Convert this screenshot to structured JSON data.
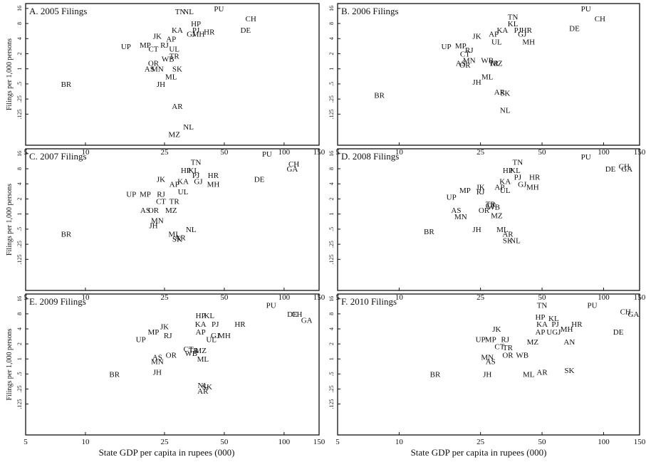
{
  "x_axis_label": "State GDP per capita in rupees (000)",
  "y_axis_label": "Filings per 1,000 persons",
  "chart_data": [
    {
      "type": "scatter",
      "title": "A. 2005 Filings",
      "xscale": "log",
      "yscale": "log",
      "xlim": [
        5,
        150
      ],
      "ylim": [
        0.03,
        20
      ],
      "xticks": [
        5,
        10,
        25,
        50,
        100,
        150
      ],
      "yticks": [
        16,
        8,
        4,
        2,
        1,
        0.5,
        0.25,
        0.125
      ],
      "ytick_labels": [
        "16",
        "8",
        "4",
        "2",
        "1",
        ".5",
        ".25",
        ".125"
      ],
      "points": [
        {
          "label": "TN",
          "x": 30,
          "y": 14
        },
        {
          "label": "NL",
          "x": 33,
          "y": 14
        },
        {
          "label": "PU",
          "x": 47,
          "y": 16
        },
        {
          "label": "CH",
          "x": 68,
          "y": 10
        },
        {
          "label": "HP",
          "x": 36,
          "y": 8
        },
        {
          "label": "PJ",
          "x": 36,
          "y": 6
        },
        {
          "label": "KA",
          "x": 29,
          "y": 6
        },
        {
          "label": "GJ",
          "x": 34,
          "y": 5
        },
        {
          "label": "MH",
          "x": 37,
          "y": 5
        },
        {
          "label": "HR",
          "x": 42,
          "y": 5.5
        },
        {
          "label": "DE",
          "x": 64,
          "y": 6
        },
        {
          "label": "JK",
          "x": 23,
          "y": 4.5
        },
        {
          "label": "AP",
          "x": 27,
          "y": 4
        },
        {
          "label": "UP",
          "x": 16,
          "y": 2.8
        },
        {
          "label": "MP",
          "x": 20,
          "y": 3
        },
        {
          "label": "RJ",
          "x": 25,
          "y": 3
        },
        {
          "label": "CT",
          "x": 22,
          "y": 2.5
        },
        {
          "label": "UL",
          "x": 28,
          "y": 2.5
        },
        {
          "label": "TR",
          "x": 28,
          "y": 1.8
        },
        {
          "label": "WB",
          "x": 26,
          "y": 1.6
        },
        {
          "label": "OR",
          "x": 22,
          "y": 1.3
        },
        {
          "label": "AS",
          "x": 21,
          "y": 1
        },
        {
          "label": "MN",
          "x": 23,
          "y": 1
        },
        {
          "label": "SK",
          "x": 29,
          "y": 1
        },
        {
          "label": "ML",
          "x": 27,
          "y": 0.7
        },
        {
          "label": "BR",
          "x": 8,
          "y": 0.5
        },
        {
          "label": "JH",
          "x": 24,
          "y": 0.5
        },
        {
          "label": "AR",
          "x": 29,
          "y": 0.18
        },
        {
          "label": "NL",
          "x": 33,
          "y": 0.07
        },
        {
          "label": "MZ",
          "x": 28,
          "y": 0.05
        }
      ]
    },
    {
      "type": "scatter",
      "title": "B. 2006 Filings",
      "xscale": "log",
      "yscale": "log",
      "xlim": [
        5,
        150
      ],
      "ylim": [
        0.03,
        20
      ],
      "xticks": [
        5,
        10,
        25,
        50,
        100,
        150
      ],
      "yticks": [
        16,
        8,
        4,
        2,
        1,
        0.5,
        0.25,
        0.125
      ],
      "ytick_labels": [
        "16",
        "8",
        "4",
        "2",
        "1",
        ".5",
        ".25",
        ".125"
      ],
      "points": [
        {
          "label": "TN",
          "x": 36,
          "y": 11
        },
        {
          "label": "PU",
          "x": 82,
          "y": 16
        },
        {
          "label": "CH",
          "x": 96,
          "y": 10
        },
        {
          "label": "KL",
          "x": 36,
          "y": 8
        },
        {
          "label": "PJ",
          "x": 38,
          "y": 6
        },
        {
          "label": "KA",
          "x": 32,
          "y": 6
        },
        {
          "label": "AP",
          "x": 29,
          "y": 5
        },
        {
          "label": "HR",
          "x": 42,
          "y": 6
        },
        {
          "label": "GJ",
          "x": 40,
          "y": 5
        },
        {
          "label": "DE",
          "x": 72,
          "y": 6.5
        },
        {
          "label": "JK",
          "x": 24,
          "y": 4.5
        },
        {
          "label": "UL",
          "x": 30,
          "y": 3.5
        },
        {
          "label": "MH",
          "x": 43,
          "y": 3.5
        },
        {
          "label": "UP",
          "x": 17,
          "y": 2.8
        },
        {
          "label": "MP",
          "x": 20,
          "y": 2.9
        },
        {
          "label": "RJ",
          "x": 22,
          "y": 2.4
        },
        {
          "label": "CT",
          "x": 21,
          "y": 2
        },
        {
          "label": "MN",
          "x": 22,
          "y": 1.5
        },
        {
          "label": "OR",
          "x": 21,
          "y": 1.2
        },
        {
          "label": "AS",
          "x": 20,
          "y": 1.3
        },
        {
          "label": "WB",
          "x": 27,
          "y": 1.5
        },
        {
          "label": "MZ",
          "x": 30,
          "y": 1.3
        },
        {
          "label": "TR",
          "x": 29,
          "y": 1.3
        },
        {
          "label": "ML",
          "x": 27,
          "y": 0.7
        },
        {
          "label": "JH",
          "x": 24,
          "y": 0.55
        },
        {
          "label": "AR",
          "x": 31,
          "y": 0.35
        },
        {
          "label": "SK",
          "x": 33,
          "y": 0.33
        },
        {
          "label": "NL",
          "x": 33,
          "y": 0.15
        },
        {
          "label": "BR",
          "x": 8,
          "y": 0.3
        }
      ]
    },
    {
      "type": "scatter",
      "title": "C. 2007 Filings",
      "xscale": "log",
      "yscale": "log",
      "xlim": [
        5,
        150
      ],
      "ylim": [
        0.03,
        20
      ],
      "xticks": [
        5,
        10,
        25,
        50,
        100,
        150
      ],
      "yticks": [
        16,
        8,
        4,
        2,
        1,
        0.5,
        0.25,
        0.125
      ],
      "ytick_labels": [
        "16",
        "8",
        "4",
        "2",
        "1",
        ".5",
        ".25",
        ".125"
      ],
      "points": [
        {
          "label": "PU",
          "x": 82,
          "y": 16
        },
        {
          "label": "TN",
          "x": 36,
          "y": 11
        },
        {
          "label": "CH",
          "x": 112,
          "y": 10
        },
        {
          "label": "GA",
          "x": 110,
          "y": 8
        },
        {
          "label": "HP",
          "x": 32,
          "y": 7.5
        },
        {
          "label": "KL",
          "x": 35,
          "y": 7.5
        },
        {
          "label": "PJ",
          "x": 36,
          "y": 6
        },
        {
          "label": "HR",
          "x": 44,
          "y": 6
        },
        {
          "label": "DE",
          "x": 75,
          "y": 5
        },
        {
          "label": "GJ",
          "x": 37,
          "y": 4.5
        },
        {
          "label": "KA",
          "x": 31,
          "y": 4.5
        },
        {
          "label": "MH",
          "x": 44,
          "y": 4
        },
        {
          "label": "JK",
          "x": 24,
          "y": 5
        },
        {
          "label": "AP",
          "x": 28,
          "y": 4
        },
        {
          "label": "UL",
          "x": 31,
          "y": 2.8
        },
        {
          "label": "UP",
          "x": 17,
          "y": 2.5
        },
        {
          "label": "MP",
          "x": 20,
          "y": 2.5
        },
        {
          "label": "RJ",
          "x": 24,
          "y": 2.5
        },
        {
          "label": "CT",
          "x": 24,
          "y": 1.8
        },
        {
          "label": "TR",
          "x": 28,
          "y": 1.8
        },
        {
          "label": "AS",
          "x": 20,
          "y": 1.2
        },
        {
          "label": "OR",
          "x": 22,
          "y": 1.2
        },
        {
          "label": "MZ",
          "x": 27,
          "y": 1.2
        },
        {
          "label": "MN",
          "x": 23,
          "y": 0.75
        },
        {
          "label": "JH",
          "x": 22,
          "y": 0.6
        },
        {
          "label": "ML",
          "x": 28,
          "y": 0.4
        },
        {
          "label": "NL",
          "x": 34,
          "y": 0.5
        },
        {
          "label": "SK",
          "x": 29,
          "y": 0.32
        },
        {
          "label": "AR",
          "x": 30,
          "y": 0.34
        },
        {
          "label": "BR",
          "x": 8,
          "y": 0.4
        }
      ]
    },
    {
      "type": "scatter",
      "title": "D. 2008 Filings",
      "xscale": "log",
      "yscale": "log",
      "xlim": [
        5,
        150
      ],
      "ylim": [
        0.03,
        20
      ],
      "xticks": [
        5,
        10,
        25,
        50,
        100,
        150
      ],
      "yticks": [
        16,
        8,
        4,
        2,
        1,
        0.5,
        0.25,
        0.125
      ],
      "ytick_labels": [
        "16",
        "8",
        "4",
        "2",
        "1",
        ".5",
        ".25",
        ".125"
      ],
      "points": [
        {
          "label": "PU",
          "x": 82,
          "y": 14
        },
        {
          "label": "TN",
          "x": 38,
          "y": 11
        },
        {
          "label": "CH",
          "x": 126,
          "y": 9
        },
        {
          "label": "DE",
          "x": 108,
          "y": 8
        },
        {
          "label": "GA",
          "x": 130,
          "y": 8
        },
        {
          "label": "HP",
          "x": 34,
          "y": 7.5
        },
        {
          "label": "KL",
          "x": 37,
          "y": 7.5
        },
        {
          "label": "PJ",
          "x": 38,
          "y": 5.5
        },
        {
          "label": "HR",
          "x": 46,
          "y": 5.5
        },
        {
          "label": "KA",
          "x": 33,
          "y": 4.5
        },
        {
          "label": "GJ",
          "x": 40,
          "y": 4
        },
        {
          "label": "MH",
          "x": 45,
          "y": 3.5
        },
        {
          "label": "AP",
          "x": 31,
          "y": 3.5
        },
        {
          "label": "UL",
          "x": 33,
          "y": 3
        },
        {
          "label": "JK",
          "x": 25,
          "y": 3.5
        },
        {
          "label": "RJ",
          "x": 25,
          "y": 2.8
        },
        {
          "label": "MP",
          "x": 21,
          "y": 3
        },
        {
          "label": "UP",
          "x": 18,
          "y": 2.2
        },
        {
          "label": "AS",
          "x": 19,
          "y": 1.2
        },
        {
          "label": "MN",
          "x": 20,
          "y": 0.9
        },
        {
          "label": "OR",
          "x": 26,
          "y": 1.2
        },
        {
          "label": "CT",
          "x": 28,
          "y": 1.5
        },
        {
          "label": "TR",
          "x": 28,
          "y": 1.6
        },
        {
          "label": "WB",
          "x": 29,
          "y": 1.4
        },
        {
          "label": "MZ",
          "x": 30,
          "y": 0.95
        },
        {
          "label": "JH",
          "x": 24,
          "y": 0.5
        },
        {
          "label": "ML",
          "x": 32,
          "y": 0.5
        },
        {
          "label": "AR",
          "x": 34,
          "y": 0.4
        },
        {
          "label": "SK",
          "x": 34,
          "y": 0.3
        },
        {
          "label": "NL",
          "x": 37,
          "y": 0.3
        },
        {
          "label": "BR",
          "x": 14,
          "y": 0.45
        }
      ]
    },
    {
      "type": "scatter",
      "title": "E. 2009 Filings",
      "xscale": "log",
      "yscale": "log",
      "xlim": [
        5,
        150
      ],
      "ylim": [
        0.03,
        20
      ],
      "xticks": [
        5,
        10,
        25,
        50,
        100,
        150
      ],
      "yticks": [
        16,
        8,
        4,
        2,
        1,
        0.5,
        0.25,
        0.125
      ],
      "ytick_labels": [
        "16",
        "8",
        "4",
        "2",
        "1",
        ".5",
        ".25",
        ".125"
      ],
      "points": [
        {
          "label": "PU",
          "x": 86,
          "y": 12
        },
        {
          "label": "DE",
          "x": 110,
          "y": 8
        },
        {
          "label": "CH",
          "x": 116,
          "y": 8
        },
        {
          "label": "GA",
          "x": 130,
          "y": 6
        },
        {
          "label": "HP",
          "x": 38,
          "y": 7.5
        },
        {
          "label": "KL",
          "x": 42,
          "y": 7.5
        },
        {
          "label": "KA",
          "x": 38,
          "y": 5
        },
        {
          "label": "PJ",
          "x": 45,
          "y": 5
        },
        {
          "label": "HR",
          "x": 60,
          "y": 5
        },
        {
          "label": "AP",
          "x": 38,
          "y": 3.5
        },
        {
          "label": "GJ",
          "x": 45,
          "y": 3
        },
        {
          "label": "MH",
          "x": 50,
          "y": 3
        },
        {
          "label": "UL",
          "x": 43,
          "y": 2.5
        },
        {
          "label": "JK",
          "x": 25,
          "y": 4.5
        },
        {
          "label": "MP",
          "x": 22,
          "y": 3.5
        },
        {
          "label": "RJ",
          "x": 26,
          "y": 3
        },
        {
          "label": "UP",
          "x": 19,
          "y": 2.5
        },
        {
          "label": "CT",
          "x": 33,
          "y": 1.6
        },
        {
          "label": "TR",
          "x": 35,
          "y": 1.5
        },
        {
          "label": "WB",
          "x": 34,
          "y": 1.3
        },
        {
          "label": "MZ",
          "x": 38,
          "y": 1.5
        },
        {
          "label": "ML",
          "x": 39,
          "y": 1
        },
        {
          "label": "OR",
          "x": 27,
          "y": 1.2
        },
        {
          "label": "AS",
          "x": 23,
          "y": 1.1
        },
        {
          "label": "MN",
          "x": 23,
          "y": 0.9
        },
        {
          "label": "JH",
          "x": 23,
          "y": 0.55
        },
        {
          "label": "NL",
          "x": 39,
          "y": 0.3
        },
        {
          "label": "SK",
          "x": 41,
          "y": 0.28
        },
        {
          "label": "AR",
          "x": 39,
          "y": 0.23
        },
        {
          "label": "BR",
          "x": 14,
          "y": 0.5
        }
      ]
    },
    {
      "type": "scatter",
      "title": "F. 2010 Filings",
      "xscale": "log",
      "yscale": "log",
      "xlim": [
        5,
        150
      ],
      "ylim": [
        0.03,
        20
      ],
      "xticks": [
        5,
        10,
        25,
        50,
        100,
        150
      ],
      "yticks": [
        16,
        8,
        4,
        2,
        1,
        0.5,
        0.25,
        0.125
      ],
      "ytick_labels": [
        "16",
        "8",
        "4",
        "2",
        "1",
        ".5",
        ".25",
        ".125"
      ],
      "points": [
        {
          "label": "TN",
          "x": 50,
          "y": 12
        },
        {
          "label": "PU",
          "x": 88,
          "y": 12
        },
        {
          "label": "CH",
          "x": 128,
          "y": 9
        },
        {
          "label": "GA",
          "x": 140,
          "y": 8
        },
        {
          "label": "HP",
          "x": 49,
          "y": 7
        },
        {
          "label": "KL",
          "x": 57,
          "y": 6.5
        },
        {
          "label": "HR",
          "x": 74,
          "y": 5
        },
        {
          "label": "PJ",
          "x": 58,
          "y": 5
        },
        {
          "label": "KA",
          "x": 50,
          "y": 5
        },
        {
          "label": "MH",
          "x": 66,
          "y": 4
        },
        {
          "label": "DE",
          "x": 118,
          "y": 3.5
        },
        {
          "label": "AP",
          "x": 49,
          "y": 3.5
        },
        {
          "label": "UGJ",
          "x": 57,
          "y": 3.5
        },
        {
          "label": "AN",
          "x": 68,
          "y": 2.2
        },
        {
          "label": "MZ",
          "x": 45,
          "y": 2.2
        },
        {
          "label": "JK",
          "x": 30,
          "y": 4
        },
        {
          "label": "UP",
          "x": 25,
          "y": 2.5
        },
        {
          "label": "MP",
          "x": 28,
          "y": 2.5
        },
        {
          "label": "RJ",
          "x": 33,
          "y": 2.5
        },
        {
          "label": "TR",
          "x": 34,
          "y": 1.7
        },
        {
          "label": "CT",
          "x": 31,
          "y": 1.8
        },
        {
          "label": "OR",
          "x": 34,
          "y": 1.2
        },
        {
          "label": "WB",
          "x": 40,
          "y": 1.2
        },
        {
          "label": "MN",
          "x": 27,
          "y": 1.1
        },
        {
          "label": "AS",
          "x": 28,
          "y": 0.9
        },
        {
          "label": "SK",
          "x": 68,
          "y": 0.6
        },
        {
          "label": "AR",
          "x": 50,
          "y": 0.55
        },
        {
          "label": "ML",
          "x": 43,
          "y": 0.5
        },
        {
          "label": "JH",
          "x": 27,
          "y": 0.5
        },
        {
          "label": "BR",
          "x": 15,
          "y": 0.5
        }
      ]
    }
  ]
}
